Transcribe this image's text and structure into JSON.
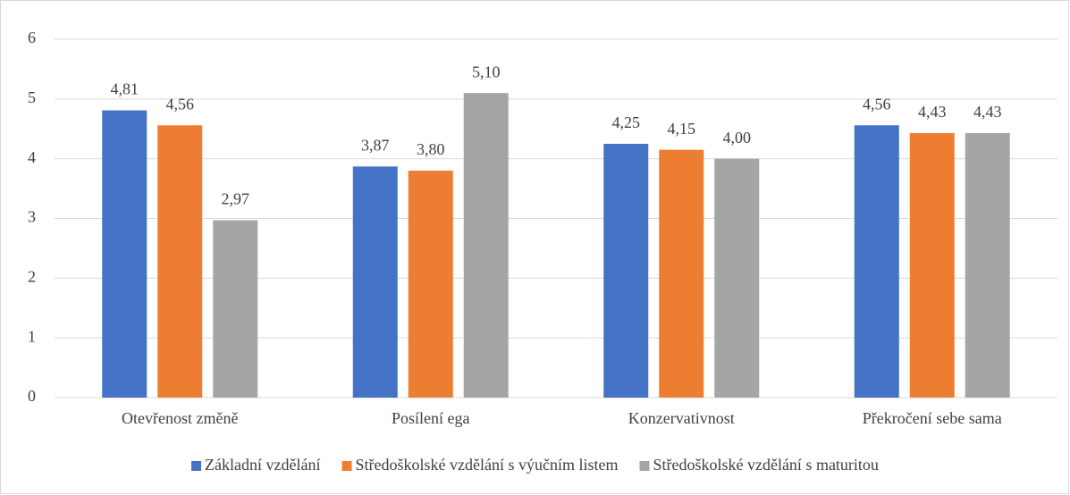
{
  "chart_data": {
    "type": "bar",
    "categories": [
      "Otevřenost změně",
      "Posílení ega",
      "Konzervativnost",
      "Překročení sebe sama"
    ],
    "series": [
      {
        "name": "Základní vzdělání",
        "color": "#4472c4",
        "values": [
          4.81,
          3.87,
          4.25,
          4.56
        ],
        "value_labels": [
          "4,81",
          "3,87",
          "4,25",
          "4,56"
        ]
      },
      {
        "name": "Středoškolské vzdělání s výučním listem",
        "color": "#ed7d31",
        "values": [
          4.56,
          3.8,
          4.15,
          4.43
        ],
        "value_labels": [
          "4,56",
          "3,80",
          "4,15",
          "4,43"
        ]
      },
      {
        "name": "Středoškolské vzdělání s maturitou",
        "color": "#a5a5a5",
        "values": [
          2.97,
          5.1,
          4.0,
          4.43
        ],
        "value_labels": [
          "2,97",
          "5,10",
          "4,00",
          "4,43"
        ]
      }
    ],
    "ylim": [
      0,
      6
    ],
    "yticks": [
      0,
      1,
      2,
      3,
      4,
      5,
      6
    ],
    "grid": true,
    "legend": "bottom"
  }
}
